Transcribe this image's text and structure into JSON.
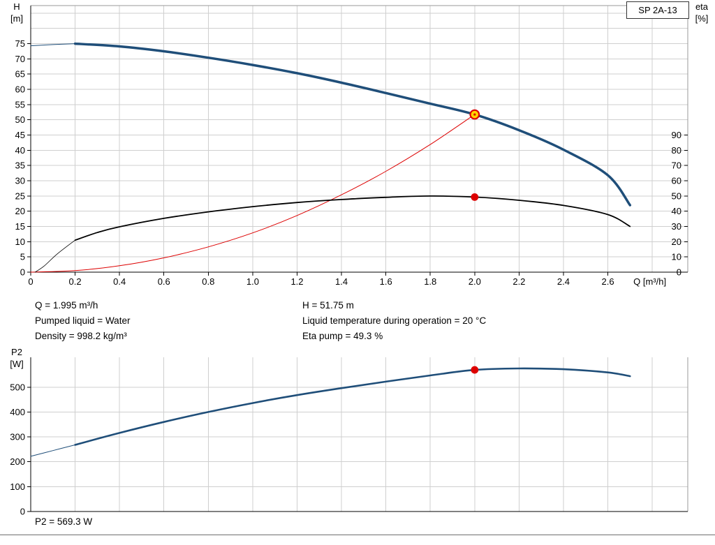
{
  "chart_data": [
    {
      "type": "line",
      "title": "SP 2A-13",
      "x_axis": {
        "label": "Q [m³/h]",
        "lim": [
          0,
          2.96
        ],
        "tick_values": [
          0,
          0.2,
          0.4,
          0.6,
          0.8,
          1.0,
          1.2,
          1.4,
          1.6,
          1.8,
          2.0,
          2.2,
          2.4,
          2.6
        ],
        "tick_labels": [
          "0",
          "0.2",
          "0.4",
          "0.6",
          "0.8",
          "1.0",
          "1.2",
          "1.4",
          "1.6",
          "1.8",
          "2.0",
          "2.2",
          "2.4",
          "2.6"
        ],
        "grid_extra": [
          2.8
        ]
      },
      "y_left_axis": {
        "label_lines": [
          "H",
          "[m]"
        ],
        "lim": [
          0,
          87.5
        ],
        "ticks": [
          0,
          5,
          10,
          15,
          20,
          25,
          30,
          35,
          40,
          45,
          50,
          55,
          60,
          65,
          70,
          75
        ],
        "grid_step": 5,
        "grid_max": 85
      },
      "y_right_axis": {
        "label_lines": [
          "eta",
          "[%]"
        ],
        "ticks": [
          0,
          10,
          20,
          30,
          40,
          50,
          60,
          70,
          80,
          90
        ],
        "h_per_percent": 0.5
      },
      "series": [
        {
          "name": "pump-curve-lead-in",
          "axis": "left",
          "color": "#1f4e79",
          "width": 1,
          "points": [
            [
              0,
              74.3
            ],
            [
              0.1,
              74.7
            ],
            [
              0.2,
              75
            ]
          ]
        },
        {
          "name": "system-curve",
          "axis": "left",
          "color": "#dd0000",
          "width": 1,
          "points": [
            [
              0,
              0
            ],
            [
              0.2,
              0.5
            ],
            [
              0.4,
              2.1
            ],
            [
              0.6,
              4.7
            ],
            [
              0.8,
              8.3
            ],
            [
              1.0,
              12.9
            ],
            [
              1.2,
              18.6
            ],
            [
              1.4,
              25.4
            ],
            [
              1.6,
              33.1
            ],
            [
              1.8,
              41.9
            ],
            [
              2.0,
              51.75
            ]
          ]
        },
        {
          "name": "efficiency-curve-lead-in",
          "axis": "eta",
          "color": "#000000",
          "width": 0.8,
          "points": [
            [
              0.02,
              0
            ],
            [
              0.06,
              4
            ],
            [
              0.12,
              12
            ],
            [
              0.2,
              21
            ]
          ]
        },
        {
          "name": "efficiency-curve",
          "axis": "eta",
          "color": "#000000",
          "width": 1.8,
          "points": [
            [
              0.2,
              21
            ],
            [
              0.3,
              26
            ],
            [
              0.4,
              29.8
            ],
            [
              0.6,
              35.3
            ],
            [
              0.8,
              39.6
            ],
            [
              1.0,
              43.0
            ],
            [
              1.2,
              45.7
            ],
            [
              1.4,
              47.7
            ],
            [
              1.6,
              49.1
            ],
            [
              1.8,
              50.0
            ],
            [
              2.0,
              49.3
            ],
            [
              2.2,
              47.2
            ],
            [
              2.4,
              43.8
            ],
            [
              2.6,
              37.8
            ],
            [
              2.7,
              30
            ]
          ]
        },
        {
          "name": "pump-curve",
          "axis": "left",
          "color": "#1f4e79",
          "width": 3.5,
          "points": [
            [
              0.2,
              75
            ],
            [
              0.4,
              74.1
            ],
            [
              0.6,
              72.5
            ],
            [
              0.8,
              70.4
            ],
            [
              1.0,
              68.0
            ],
            [
              1.2,
              65.3
            ],
            [
              1.4,
              62.2
            ],
            [
              1.6,
              58.8
            ],
            [
              1.8,
              55.3
            ],
            [
              2.0,
              51.75
            ],
            [
              2.2,
              46.6
            ],
            [
              2.4,
              40.2
            ],
            [
              2.6,
              31.8
            ],
            [
              2.7,
              22
            ]
          ]
        }
      ],
      "markers": [
        {
          "name": "duty-point",
          "axis": "left",
          "q": 2.0,
          "v": 51.75,
          "style": "ring",
          "fill": "#ffd400",
          "stroke": "#dd0000",
          "r": 6.3
        },
        {
          "name": "efficiency-point",
          "axis": "eta",
          "q": 2.0,
          "v": 49.3,
          "style": "dot",
          "fill": "#dd0000",
          "r": 5.4
        }
      ]
    },
    {
      "type": "line",
      "x_axis": {
        "label": "",
        "lim": [
          0,
          2.96
        ],
        "tick_values": [
          0,
          0.2,
          0.4,
          0.6,
          0.8,
          1.0,
          1.2,
          1.4,
          1.6,
          1.8,
          2.0,
          2.2,
          2.4,
          2.6
        ],
        "tick_labels": [],
        "grid_extra": [
          2.8
        ]
      },
      "y_left_axis": {
        "label_lines": [
          "P2",
          "[W]"
        ],
        "lim": [
          0,
          620
        ],
        "ticks": [
          0,
          100,
          200,
          300,
          400,
          500
        ],
        "grid_step": 100,
        "grid_max": 500
      },
      "series": [
        {
          "name": "p2-curve-lead-in",
          "axis": "left",
          "color": "#1f4e79",
          "width": 1,
          "points": [
            [
              0,
              222
            ],
            [
              0.1,
              245
            ],
            [
              0.2,
              268
            ]
          ]
        },
        {
          "name": "p2-curve",
          "axis": "left",
          "color": "#1f4e79",
          "width": 2.6,
          "points": [
            [
              0.2,
              268
            ],
            [
              0.4,
              316
            ],
            [
              0.6,
              360
            ],
            [
              0.8,
              400
            ],
            [
              1.0,
              436
            ],
            [
              1.2,
              468
            ],
            [
              1.4,
              496
            ],
            [
              1.6,
              522
            ],
            [
              1.8,
              547
            ],
            [
              2.0,
              569.3
            ],
            [
              2.2,
              575
            ],
            [
              2.4,
              572
            ],
            [
              2.6,
              559
            ],
            [
              2.7,
              544
            ]
          ]
        }
      ],
      "markers": [
        {
          "name": "p2-point",
          "axis": "left",
          "q": 2.0,
          "v": 569.3,
          "style": "dot",
          "fill": "#dd0000",
          "r": 5.4
        }
      ],
      "result_label": "P2 = 569.3 W"
    }
  ],
  "info_panel": {
    "left_column": [
      "Q = 1.995 m³/h",
      "Pumped liquid = Water",
      "Density = 998.2 kg/m³"
    ],
    "right_column": [
      "H = 51.75 m",
      "Liquid temperature during operation = 20 °C",
      "Eta pump = 49.3 %"
    ]
  },
  "colors": {
    "pump_curve": "#1f4e79",
    "efficiency_curve": "#000000",
    "system_curve": "#dd0000",
    "duty_point_fill": "#ffd400",
    "duty_point_ring": "#dd0000",
    "grid": "#cfcfcf",
    "border": "#9a9a9a"
  }
}
